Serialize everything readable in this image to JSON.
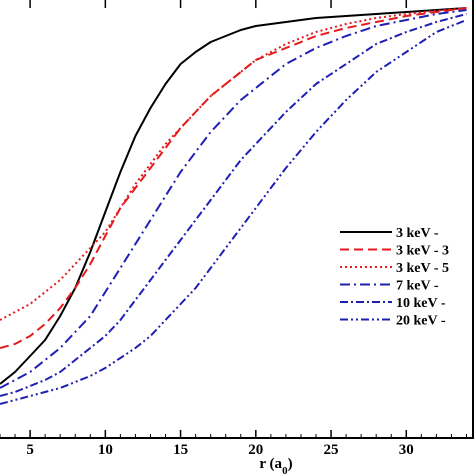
{
  "chart_data": {
    "type": "line",
    "title": "",
    "xlabel": "r (a",
    "xlabel_sub": "0",
    "xlabel_close": ")",
    "ylabel": "",
    "xlim": [
      3,
      34.5
    ],
    "ylim": [
      0,
      1
    ],
    "x_ticks": [
      5,
      10,
      15,
      20,
      25,
      30
    ],
    "x_tick_labels": [
      "5",
      "10",
      "15",
      "20",
      "25",
      "30"
    ],
    "grid": false,
    "legend_position": "right",
    "series": [
      {
        "name": "3 keV -",
        "color": "#000000",
        "dash": "",
        "x": [
          3,
          4,
          5,
          6,
          7,
          8,
          9,
          10,
          11,
          12,
          13,
          14,
          15,
          16,
          17,
          18,
          19,
          20,
          22,
          24,
          26,
          28,
          30,
          32,
          34
        ],
        "y": [
          0.06,
          0.09,
          0.13,
          0.17,
          0.23,
          0.3,
          0.39,
          0.49,
          0.59,
          0.68,
          0.75,
          0.81,
          0.86,
          0.89,
          0.915,
          0.93,
          0.945,
          0.955,
          0.965,
          0.975,
          0.98,
          0.985,
          0.99,
          0.995,
          1.0
        ]
      },
      {
        "name": "3 keV - 3",
        "color": "#e41a1c",
        "dash": "9,5",
        "x": [
          3,
          4,
          5,
          6,
          7,
          8,
          9,
          10,
          11,
          12,
          13,
          14,
          15,
          16,
          17,
          18,
          19,
          20,
          22,
          24,
          26,
          28,
          30,
          32,
          34
        ],
        "y": [
          0.15,
          0.16,
          0.18,
          0.21,
          0.25,
          0.3,
          0.36,
          0.43,
          0.5,
          0.55,
          0.6,
          0.65,
          0.7,
          0.74,
          0.78,
          0.81,
          0.84,
          0.87,
          0.9,
          0.93,
          0.95,
          0.965,
          0.98,
          0.99,
          1.0
        ]
      },
      {
        "name": "3 keV - 5",
        "color": "#e41a1c",
        "dash": "2,3",
        "x": [
          3,
          4,
          5,
          6,
          7,
          8,
          9,
          10,
          11,
          12,
          13,
          14,
          15,
          16,
          17,
          18,
          19,
          20,
          22,
          24,
          26,
          28,
          30,
          32,
          34
        ],
        "y": [
          0.22,
          0.24,
          0.26,
          0.29,
          0.32,
          0.36,
          0.4,
          0.44,
          0.5,
          0.56,
          0.61,
          0.66,
          0.7,
          0.74,
          0.78,
          0.81,
          0.84,
          0.87,
          0.91,
          0.94,
          0.96,
          0.975,
          0.985,
          0.993,
          1.0
        ]
      },
      {
        "name": "7 keV -",
        "color": "#1f1fb4",
        "dash": "10,4,2,4",
        "x": [
          3,
          4,
          5,
          6,
          7,
          8,
          9,
          10,
          11,
          12,
          13,
          14,
          15,
          16,
          17,
          18,
          19,
          20,
          22,
          24,
          26,
          28,
          30,
          32,
          34
        ],
        "y": [
          0.05,
          0.07,
          0.09,
          0.12,
          0.15,
          0.19,
          0.23,
          0.29,
          0.35,
          0.41,
          0.47,
          0.53,
          0.59,
          0.64,
          0.69,
          0.73,
          0.77,
          0.8,
          0.86,
          0.9,
          0.93,
          0.955,
          0.97,
          0.985,
          0.995
        ]
      },
      {
        "name": "10 keV -",
        "color": "#1f1fb4",
        "dash": "8,3,2,3",
        "x": [
          3,
          4,
          5,
          6,
          7,
          8,
          9,
          10,
          11,
          12,
          13,
          14,
          15,
          16,
          17,
          18,
          19,
          20,
          22,
          24,
          26,
          28,
          30,
          32,
          34
        ],
        "y": [
          0.03,
          0.04,
          0.055,
          0.07,
          0.09,
          0.12,
          0.15,
          0.18,
          0.22,
          0.27,
          0.32,
          0.37,
          0.42,
          0.47,
          0.52,
          0.57,
          0.62,
          0.66,
          0.74,
          0.81,
          0.86,
          0.91,
          0.94,
          0.965,
          0.985
        ]
      },
      {
        "name": "20 keV -",
        "color": "#1f1fb4",
        "dash": "8,3,2,3,2,3",
        "x": [
          3,
          4,
          5,
          6,
          7,
          8,
          9,
          10,
          11,
          12,
          13,
          14,
          15,
          16,
          17,
          18,
          19,
          20,
          22,
          24,
          26,
          28,
          30,
          32,
          34
        ],
        "y": [
          0.01,
          0.02,
          0.03,
          0.04,
          0.05,
          0.065,
          0.08,
          0.1,
          0.125,
          0.15,
          0.18,
          0.22,
          0.26,
          0.3,
          0.35,
          0.4,
          0.45,
          0.5,
          0.6,
          0.69,
          0.77,
          0.84,
          0.89,
          0.94,
          0.97
        ]
      }
    ]
  }
}
